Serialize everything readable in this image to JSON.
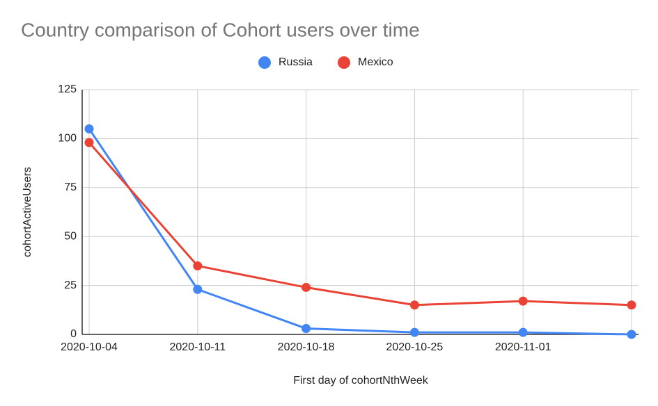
{
  "chart_data": {
    "type": "line",
    "title": "Country comparison of Cohort users over time",
    "x_label": "First day of cohortNthWeek",
    "y_label": "cohortActiveUsers",
    "categories": [
      "2020-10-04",
      "2020-10-11",
      "2020-10-18",
      "2020-10-25",
      "2020-11-01",
      null
    ],
    "series": [
      {
        "name": "Russia",
        "color": "#4285f4",
        "values": [
          105,
          23,
          3,
          1,
          1,
          0
        ]
      },
      {
        "name": "Mexico",
        "color": "#ea4335",
        "values": [
          98,
          35,
          24,
          15,
          17,
          15
        ]
      }
    ],
    "ylim": [
      0,
      125
    ],
    "yticks": [
      0,
      25,
      50,
      75,
      100,
      125
    ],
    "grid": true,
    "legend": "top"
  }
}
